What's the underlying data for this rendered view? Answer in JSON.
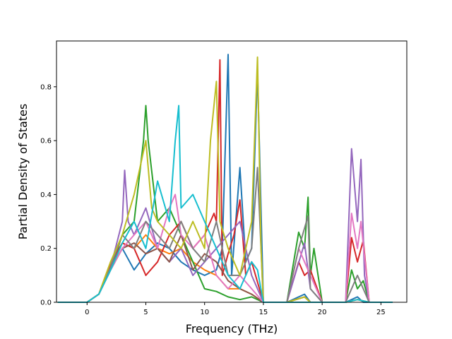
{
  "chart_data": {
    "type": "line",
    "title": "",
    "xlabel": "Frequency (THz)",
    "ylabel": "Partial Density of States",
    "xlim": [
      -2.6,
      27.2
    ],
    "ylim": [
      0,
      0.97
    ],
    "xticks": [
      0,
      5,
      10,
      15,
      20,
      25
    ],
    "yticks": [
      0.0,
      0.2,
      0.4,
      0.6,
      0.8
    ],
    "ytick_labels": [
      "0.0",
      "0.2",
      "0.4",
      "0.6",
      "0.8"
    ],
    "grid": false,
    "legend": "none",
    "series": [
      {
        "color": "#1f77b4",
        "x": [
          -2.5,
          0,
          1,
          2,
          3,
          4,
          5,
          6,
          7,
          8,
          9,
          10,
          11,
          11.5,
          12,
          12.3,
          13,
          13.5,
          14,
          14.5,
          15,
          17,
          18,
          18.5,
          19,
          20,
          22,
          22.5,
          23,
          23.5,
          24,
          26
        ],
        "y": [
          0,
          0,
          0.03,
          0.12,
          0.2,
          0.12,
          0.18,
          0.22,
          0.2,
          0.15,
          0.12,
          0.1,
          0.12,
          0.2,
          0.92,
          0.1,
          0.5,
          0.15,
          0.2,
          0.86,
          0,
          0,
          0.02,
          0.03,
          0,
          0,
          0,
          0.01,
          0.02,
          0,
          0,
          0
        ]
      },
      {
        "color": "#ff7f0e",
        "x": [
          -2.5,
          0,
          1,
          2,
          3,
          4,
          5,
          6,
          7,
          8,
          9,
          10,
          11,
          12,
          13,
          14,
          15,
          17,
          18.5,
          19,
          20,
          22,
          23,
          24,
          26
        ],
        "y": [
          0,
          0,
          0.03,
          0.15,
          0.22,
          0.2,
          0.25,
          0.2,
          0.18,
          0.2,
          0.15,
          0.12,
          0.1,
          0.05,
          0.05,
          0.03,
          0,
          0,
          0.02,
          0,
          0,
          0,
          0.01,
          0,
          0
        ]
      },
      {
        "color": "#2ca02c",
        "x": [
          -2.5,
          0,
          1,
          2,
          3,
          4,
          4.8,
          5,
          5.2,
          6,
          7,
          8,
          9,
          10,
          11,
          12,
          13,
          14,
          15,
          17,
          18,
          18.5,
          18.8,
          19,
          19.3,
          20,
          22,
          22.5,
          23,
          23.5,
          24,
          26
        ],
        "y": [
          0,
          0,
          0.03,
          0.12,
          0.25,
          0.3,
          0.6,
          0.73,
          0.6,
          0.3,
          0.35,
          0.25,
          0.15,
          0.05,
          0.04,
          0.02,
          0.01,
          0.02,
          0,
          0,
          0.26,
          0.2,
          0.39,
          0.1,
          0.2,
          0,
          0,
          0.12,
          0.05,
          0.08,
          0,
          0
        ]
      },
      {
        "color": "#d62728",
        "x": [
          -2.5,
          0,
          1,
          2,
          3,
          4,
          5,
          6,
          7,
          8,
          9,
          10,
          10.8,
          11,
          11.3,
          11.5,
          12,
          12.5,
          13,
          13.5,
          14,
          15,
          17,
          18,
          18.5,
          19,
          20,
          22,
          22.5,
          23,
          23.5,
          24,
          26
        ],
        "y": [
          0,
          0,
          0.03,
          0.14,
          0.22,
          0.2,
          0.1,
          0.15,
          0.25,
          0.3,
          0.2,
          0.25,
          0.33,
          0.3,
          0.9,
          0.1,
          0.18,
          0.25,
          0.38,
          0.1,
          0.15,
          0,
          0,
          0.15,
          0.1,
          0.12,
          0,
          0,
          0.24,
          0.15,
          0.23,
          0,
          0
        ]
      },
      {
        "color": "#9467bd",
        "x": [
          -2.5,
          0,
          1,
          2,
          3,
          3.2,
          3.5,
          4,
          5,
          6,
          7,
          8,
          9,
          10,
          11,
          12,
          13,
          14,
          15,
          17,
          18.5,
          19,
          20,
          22,
          22.5,
          23,
          23.3,
          23.6,
          24,
          26
        ],
        "y": [
          0,
          0,
          0.03,
          0.13,
          0.3,
          0.49,
          0.3,
          0.25,
          0.35,
          0.2,
          0.15,
          0.2,
          0.1,
          0.15,
          0.2,
          0.25,
          0.3,
          0.1,
          0,
          0,
          0.22,
          0.05,
          0,
          0,
          0.57,
          0.3,
          0.53,
          0.1,
          0,
          0
        ]
      },
      {
        "color": "#8c564b",
        "x": [
          -2.5,
          0,
          1,
          2,
          3,
          4,
          5,
          6,
          7,
          8,
          9,
          10,
          11,
          12,
          13,
          14,
          15,
          17,
          18.5,
          19,
          20,
          22,
          23,
          24,
          26
        ],
        "y": [
          0,
          0,
          0.03,
          0.12,
          0.2,
          0.22,
          0.18,
          0.2,
          0.15,
          0.25,
          0.12,
          0.18,
          0.15,
          0.08,
          0.05,
          0.03,
          0,
          0,
          0.02,
          0,
          0,
          0,
          0.01,
          0,
          0
        ]
      },
      {
        "color": "#e377c2",
        "x": [
          -2.5,
          0,
          1,
          2,
          3,
          4,
          5,
          6,
          7,
          7.5,
          8,
          9,
          10,
          11,
          12,
          13,
          14,
          15,
          17,
          18,
          18.5,
          19,
          20,
          22,
          22.5,
          23,
          23.3,
          24,
          26
        ],
        "y": [
          0,
          0,
          0.03,
          0.12,
          0.2,
          0.25,
          0.3,
          0.2,
          0.35,
          0.4,
          0.25,
          0.2,
          0.25,
          0.1,
          0.05,
          0.1,
          0.05,
          0,
          0,
          0.2,
          0.15,
          0.1,
          0,
          0,
          0.33,
          0.2,
          0.3,
          0,
          0
        ]
      },
      {
        "color": "#7f7f7f",
        "x": [
          -2.5,
          0,
          1,
          2,
          3,
          4,
          5,
          6,
          7,
          8,
          9,
          10,
          11,
          12,
          13,
          14,
          14.5,
          15,
          17,
          18,
          18.8,
          19,
          20,
          22,
          22.5,
          23,
          24,
          26
        ],
        "y": [
          0,
          0,
          0.03,
          0.13,
          0.25,
          0.2,
          0.3,
          0.25,
          0.2,
          0.3,
          0.2,
          0.15,
          0.3,
          0.1,
          0.1,
          0.2,
          0.5,
          0,
          0,
          0.2,
          0.32,
          0.05,
          0,
          0,
          0.05,
          0.1,
          0,
          0
        ]
      },
      {
        "color": "#bcbd22",
        "x": [
          -2.5,
          0,
          1,
          2,
          3,
          4,
          4.5,
          5,
          5.5,
          6,
          7,
          8,
          9,
          10,
          10.5,
          11,
          11.3,
          12,
          13,
          14,
          14.5,
          14.8,
          15,
          17,
          18.5,
          19,
          20,
          22,
          23,
          24,
          26
        ],
        "y": [
          0,
          0,
          0.03,
          0.15,
          0.25,
          0.4,
          0.5,
          0.6,
          0.35,
          0.3,
          0.25,
          0.2,
          0.3,
          0.2,
          0.6,
          0.82,
          0.3,
          0.2,
          0.1,
          0.3,
          0.91,
          0.2,
          0,
          0,
          0.02,
          0,
          0,
          0,
          0.01,
          0,
          0
        ]
      },
      {
        "color": "#17becf",
        "x": [
          -2.5,
          0,
          1,
          2,
          3,
          4,
          5,
          6,
          7,
          7.5,
          7.8,
          8,
          9,
          10,
          11,
          12,
          13,
          14,
          14.5,
          15,
          17,
          18.5,
          19,
          20,
          22,
          23,
          24,
          26
        ],
        "y": [
          0,
          0,
          0.03,
          0.12,
          0.22,
          0.3,
          0.2,
          0.45,
          0.3,
          0.6,
          0.73,
          0.35,
          0.4,
          0.3,
          0.2,
          0.1,
          0.05,
          0.15,
          0.12,
          0,
          0,
          0,
          0,
          0,
          0,
          0.01,
          0,
          0
        ]
      }
    ]
  }
}
